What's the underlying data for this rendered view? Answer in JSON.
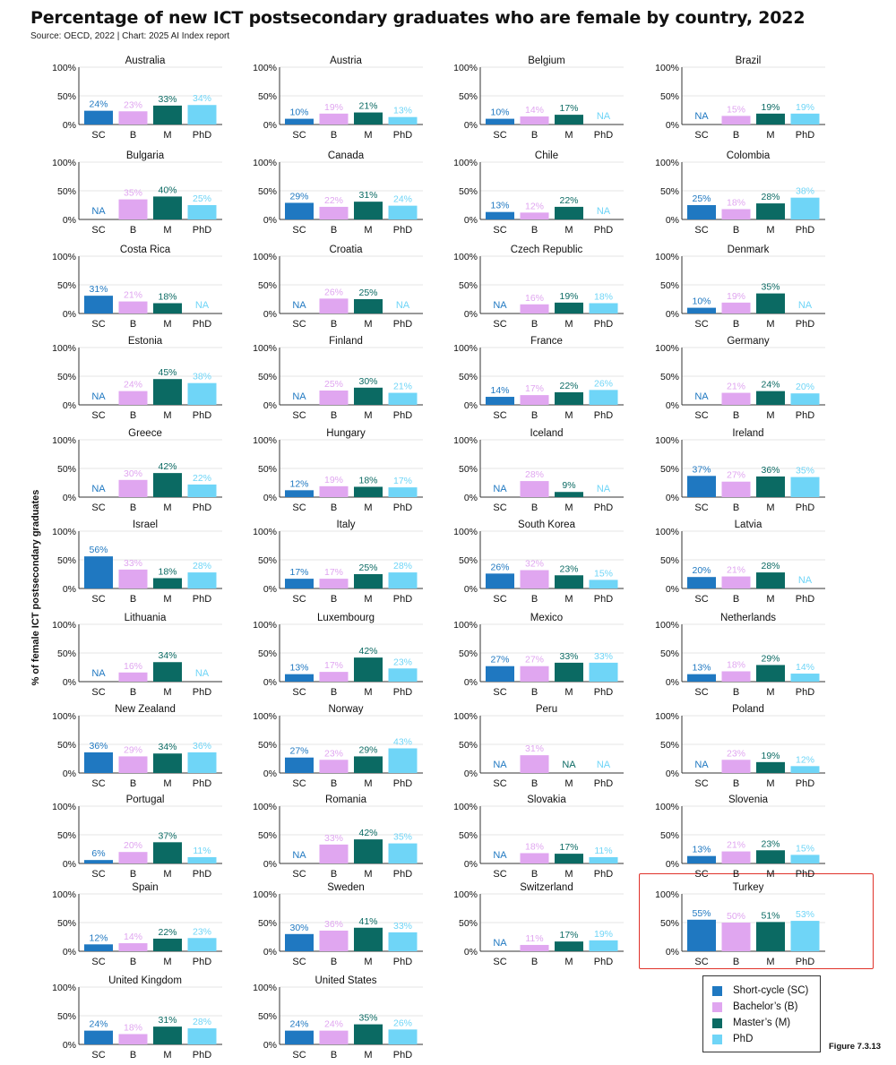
{
  "title": "Percentage of new ICT postsecondary graduates who are female by country, 2022",
  "subtitle": "Source: OECD, 2022 | Chart: 2025 AI Index report",
  "figure_id": "Figure 7.3.13",
  "colors": {
    "SC": "#1f78c1",
    "B": "#e0a6f0",
    "M": "#0b6a63",
    "PhD": "#6fd5f7",
    "highlight": "#e0322a"
  },
  "legend": [
    {
      "key": "SC",
      "label": "Short-cycle (SC)"
    },
    {
      "key": "B",
      "label": "Bachelor’s (B)"
    },
    {
      "key": "M",
      "label": "Master’s (M)"
    },
    {
      "key": "PhD",
      "label": "PhD"
    }
  ],
  "chart_data": {
    "type": "bar",
    "layout": "small-multiples",
    "ylabel": "% of female ICT postsecondary graduates",
    "categories": [
      "SC",
      "B",
      "M",
      "PhD"
    ],
    "y_ticks": [
      "0%",
      "50%",
      "100%"
    ],
    "ylim": [
      0,
      100
    ],
    "missing_label": "NA",
    "highlighted_panel": "Turkey",
    "panels": [
      {
        "country": "Australia",
        "values": [
          24,
          23,
          33,
          34
        ]
      },
      {
        "country": "Austria",
        "values": [
          10,
          19,
          21,
          13
        ]
      },
      {
        "country": "Belgium",
        "values": [
          10,
          14,
          17,
          null
        ]
      },
      {
        "country": "Brazil",
        "values": [
          null,
          15,
          19,
          19
        ]
      },
      {
        "country": "Bulgaria",
        "values": [
          null,
          35,
          40,
          25
        ]
      },
      {
        "country": "Canada",
        "values": [
          29,
          22,
          31,
          24
        ]
      },
      {
        "country": "Chile",
        "values": [
          13,
          12,
          22,
          null
        ]
      },
      {
        "country": "Colombia",
        "values": [
          25,
          18,
          28,
          38
        ]
      },
      {
        "country": "Costa Rica",
        "values": [
          31,
          21,
          18,
          null
        ]
      },
      {
        "country": "Croatia",
        "values": [
          null,
          26,
          25,
          null
        ]
      },
      {
        "country": "Czech Republic",
        "values": [
          null,
          16,
          19,
          18
        ]
      },
      {
        "country": "Denmark",
        "values": [
          10,
          19,
          35,
          null
        ]
      },
      {
        "country": "Estonia",
        "values": [
          null,
          24,
          45,
          38
        ]
      },
      {
        "country": "Finland",
        "values": [
          null,
          25,
          30,
          21
        ]
      },
      {
        "country": "France",
        "values": [
          14,
          17,
          22,
          26
        ]
      },
      {
        "country": "Germany",
        "values": [
          null,
          21,
          24,
          20
        ]
      },
      {
        "country": "Greece",
        "values": [
          null,
          30,
          42,
          22
        ]
      },
      {
        "country": "Hungary",
        "values": [
          12,
          19,
          18,
          17
        ]
      },
      {
        "country": "Iceland",
        "values": [
          null,
          28,
          9,
          null
        ]
      },
      {
        "country": "Ireland",
        "values": [
          37,
          27,
          36,
          35
        ]
      },
      {
        "country": "Israel",
        "values": [
          56,
          33,
          18,
          28
        ]
      },
      {
        "country": "Italy",
        "values": [
          17,
          17,
          25,
          28
        ]
      },
      {
        "country": "South Korea",
        "values": [
          26,
          32,
          23,
          15
        ]
      },
      {
        "country": "Latvia",
        "values": [
          20,
          21,
          28,
          null
        ]
      },
      {
        "country": "Lithuania",
        "values": [
          null,
          16,
          34,
          null
        ]
      },
      {
        "country": "Luxembourg",
        "values": [
          13,
          17,
          42,
          23
        ]
      },
      {
        "country": "Mexico",
        "values": [
          27,
          27,
          33,
          33
        ]
      },
      {
        "country": "Netherlands",
        "values": [
          13,
          18,
          29,
          14
        ]
      },
      {
        "country": "New Zealand",
        "values": [
          36,
          29,
          34,
          36
        ]
      },
      {
        "country": "Norway",
        "values": [
          27,
          23,
          29,
          43
        ]
      },
      {
        "country": "Peru",
        "values": [
          null,
          31,
          null,
          null
        ]
      },
      {
        "country": "Poland",
        "values": [
          null,
          23,
          19,
          12
        ]
      },
      {
        "country": "Portugal",
        "values": [
          6,
          20,
          37,
          11
        ]
      },
      {
        "country": "Romania",
        "values": [
          null,
          33,
          42,
          35
        ]
      },
      {
        "country": "Slovakia",
        "values": [
          null,
          18,
          17,
          11
        ]
      },
      {
        "country": "Slovenia",
        "values": [
          13,
          21,
          23,
          15
        ]
      },
      {
        "country": "Spain",
        "values": [
          12,
          14,
          22,
          23
        ]
      },
      {
        "country": "Sweden",
        "values": [
          30,
          36,
          41,
          33
        ]
      },
      {
        "country": "Switzerland",
        "values": [
          null,
          11,
          17,
          19
        ]
      },
      {
        "country": "Turkey",
        "values": [
          55,
          50,
          51,
          53
        ]
      },
      {
        "country": "United Kingdom",
        "values": [
          24,
          18,
          31,
          28
        ]
      },
      {
        "country": "United States",
        "values": [
          24,
          24,
          35,
          26
        ]
      }
    ]
  }
}
